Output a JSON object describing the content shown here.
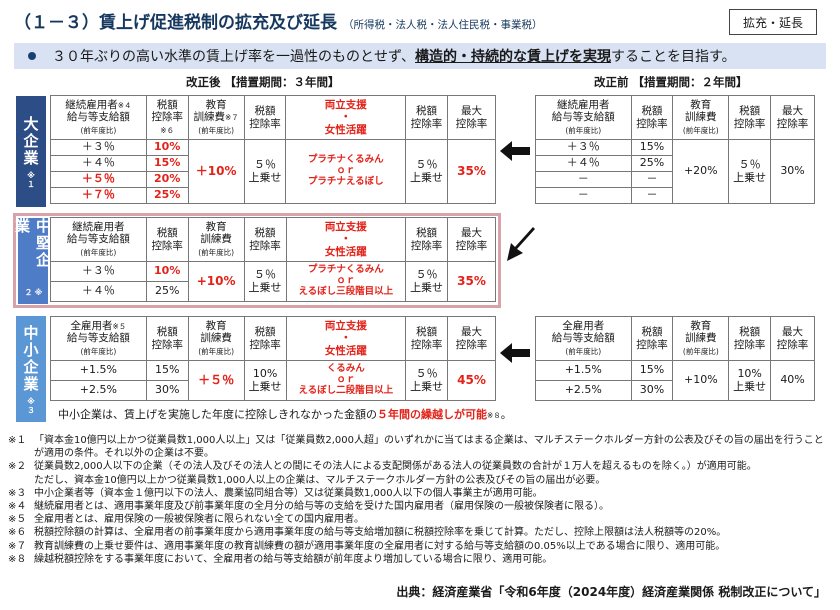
{
  "title": "（１－３）賃上げ促進税制の拡充及び延長",
  "title_sub": "（所得税・法人税・法人住民税・事業税）",
  "badge": "拡充・延長",
  "banner": {
    "pre": "３０年ぶりの高い水準の賃上げ率を一過性のものとせず、",
    "emph": "構造的・持続的な賃上げを実現",
    "post": "することを目指す。"
  },
  "after_heading": "改正後 【措置期間：３年間】",
  "before_heading": "改正前 【措置期間：２年間】",
  "headers": {
    "wage_cont": "継続雇用者",
    "wage_all": "全雇用者",
    "wage_2": "給与等支給額",
    "prev_year": "(前年度比)",
    "note4": "※４",
    "note5": "※５",
    "credit": "税額",
    "credit2": "控除率",
    "note6": "※６",
    "edu": "教育",
    "edu2": "訓練費",
    "note7": "※７",
    "ryo1": "両立支援",
    "dot": "・",
    "ryo2": "女性活躍",
    "max1": "最大",
    "max2": "控除率"
  },
  "large": {
    "label": "大企業",
    "note": "※１",
    "after": {
      "rows": [
        {
          "wage": "＋３％",
          "rate": "10%"
        },
        {
          "wage": "＋４％",
          "rate": "15%"
        },
        {
          "wage": "＋５％",
          "rate": "20%"
        },
        {
          "wage": "＋７％",
          "rate": "25%"
        }
      ],
      "edu": "＋10%",
      "add1": "５％",
      "add1b": "上乗せ",
      "ryo1": "プラチナくるみん",
      "or": "ｏｒ",
      "ryo2": "プラチナえるぼし",
      "add2": "５％",
      "add2b": "上乗せ",
      "max": "35%"
    },
    "before": {
      "rows": [
        {
          "wage": "＋３％",
          "rate": "15%"
        },
        {
          "wage": "＋４％",
          "rate": "25%"
        },
        {
          "wage": "－",
          "rate": "－"
        },
        {
          "wage": "－",
          "rate": "－"
        }
      ],
      "edu": "+20%",
      "add": "５％",
      "addb": "上乗せ",
      "max": "30%"
    }
  },
  "mid": {
    "label": "中堅企業",
    "note": "※２",
    "rows": [
      {
        "wage": "＋３％",
        "rate": "10%"
      },
      {
        "wage": "＋４％",
        "rate": "25%"
      }
    ],
    "edu": "+10%",
    "add1": "５％",
    "add1b": "上乗せ",
    "ryo1": "プラチナくるみん",
    "or": "ｏｒ",
    "ryo2": "えるぼし三段階目以上",
    "add2": "５％",
    "add2b": "上乗せ",
    "max": "35%"
  },
  "small": {
    "label": "中小企業",
    "note": "※３",
    "after": {
      "rows": [
        {
          "wage": "+1.5%",
          "rate": "15%"
        },
        {
          "wage": "+2.5%",
          "rate": "30%"
        }
      ],
      "edu": "＋５％",
      "add1": "10%",
      "add1b": "上乗せ",
      "ryo1": "くるみん",
      "or": "ｏｒ",
      "ryo2": "えるぼし二段階目以上",
      "add2": "５％",
      "add2b": "上乗せ",
      "max": "45%"
    },
    "before": {
      "rows": [
        {
          "wage": "+1.5%",
          "rate": "15%"
        },
        {
          "wage": "+2.5%",
          "rate": "30%"
        }
      ],
      "edu": "+10%",
      "add": "10%",
      "addb": "上乗せ",
      "max": "40%"
    },
    "carry_pre": "中小企業は、賃上げを実施した年度に控除しきれなかった金額の",
    "carry_red": "５年間の繰越しが可能",
    "carry_note": "※８",
    "carry_post": "。"
  },
  "footnotes": [
    {
      "k": "※１",
      "lines": [
        "「資本金10億円以上かつ従業員数1,000人以上」又は「従業員数2,000人超」のいずれかに当てはまる企業は、マルチステークホルダー方針の公表及びその旨の届出を行うこと",
        "が適用の条件。それ以外の企業は不要。"
      ]
    },
    {
      "k": "※２",
      "lines": [
        "従業員数2,000人以下の企業（その法人及びその法人との間にその法人による支配関係がある法人の従業員数の合計が１万人を超えるものを除く。）が適用可能。",
        "ただし、資本金10億円以上かつ従業員数1,000人以上の企業は、マルチステークホルダー方針の公表及びその旨の届出が必要。"
      ]
    },
    {
      "k": "※３",
      "lines": [
        "中小企業者等（資本金１億円以下の法人、農業協同組合等）又は従業員数1,000人以下の個人事業主が適用可能。"
      ]
    },
    {
      "k": "※４",
      "lines": [
        "継続雇用者とは、適用事業年度及び前事業年度の全月分の給与等の支給を受けた国内雇用者（雇用保険の一般被保険者に限る）。"
      ]
    },
    {
      "k": "※５",
      "lines": [
        "全雇用者とは、雇用保険の一般被保険者に限られない全ての国内雇用者。"
      ]
    },
    {
      "k": "※６",
      "lines": [
        "税額控除額の計算は、全雇用者の前事業年度から適用事業年度の給与等支給増加額に税額控除率を乗じて計算。ただし、控除上限額は法人税額等の20%。"
      ]
    },
    {
      "k": "※７",
      "lines": [
        "教育訓練費の上乗せ要件は、適用事業年度の教育訓練費の額が適用事業年度の全雇用者に対する給与等支給額の0.05%以上である場合に限り、適用可能。"
      ]
    },
    {
      "k": "※８",
      "lines": [
        "繰越税額控除をする事業年度において、全雇用者の給与等支給額が前年度より増加している場合に限り、適用可能。"
      ]
    }
  ],
  "source": "出典：経済産業省「令和6年度（2024年度）経済産業関係 税制改正について」",
  "colors": {
    "navy": "#2c4d85",
    "mid_blue": "#4f7cc7",
    "light_blue": "#5b97d5",
    "red": "#e2231a",
    "banner": "#d9e2f3",
    "pink_border": "#d9a1a8"
  }
}
